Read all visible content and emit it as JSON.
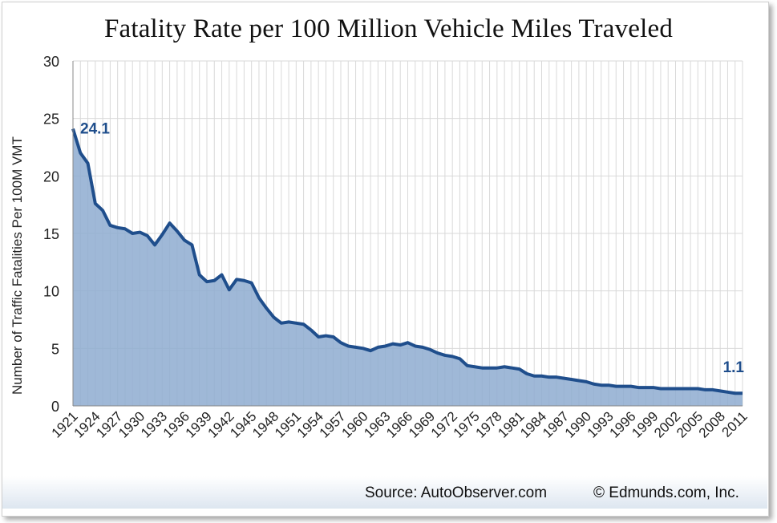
{
  "chart_data": {
    "type": "area",
    "title": "Fatality Rate per 100 Million Vehicle Miles Traveled",
    "ylabel": "Number of Traffic Fatalities Per 100M VMT",
    "xlabel": "",
    "ylim": [
      0,
      30
    ],
    "yticks": [
      "0",
      "5",
      "10",
      "15",
      "20",
      "25",
      "30"
    ],
    "xticks": [
      "1921",
      "1924",
      "1927",
      "1930",
      "1933",
      "1936",
      "1939",
      "1942",
      "1945",
      "1948",
      "1951",
      "1954",
      "1957",
      "1960",
      "1963",
      "1966",
      "1969",
      "1972",
      "1975",
      "1978",
      "1981",
      "1984",
      "1987",
      "1990",
      "1993",
      "1996",
      "1999",
      "2002",
      "2005",
      "2008",
      "2011"
    ],
    "grid": true,
    "x": [
      1921,
      1922,
      1923,
      1924,
      1925,
      1926,
      1927,
      1928,
      1929,
      1930,
      1931,
      1932,
      1933,
      1934,
      1935,
      1936,
      1937,
      1938,
      1939,
      1940,
      1941,
      1942,
      1943,
      1944,
      1945,
      1946,
      1947,
      1948,
      1949,
      1950,
      1951,
      1952,
      1953,
      1954,
      1955,
      1956,
      1957,
      1958,
      1959,
      1960,
      1961,
      1962,
      1963,
      1964,
      1965,
      1966,
      1967,
      1968,
      1969,
      1970,
      1971,
      1972,
      1973,
      1974,
      1975,
      1976,
      1977,
      1978,
      1979,
      1980,
      1981,
      1982,
      1983,
      1984,
      1985,
      1986,
      1987,
      1988,
      1989,
      1990,
      1991,
      1992,
      1993,
      1994,
      1995,
      1996,
      1997,
      1998,
      1999,
      2000,
      2001,
      2002,
      2003,
      2004,
      2005,
      2006,
      2007,
      2008,
      2009,
      2010,
      2011
    ],
    "values": [
      24.1,
      22.0,
      21.1,
      17.6,
      17.0,
      15.7,
      15.5,
      15.4,
      15.0,
      15.1,
      14.8,
      14.0,
      14.9,
      15.9,
      15.2,
      14.4,
      14.0,
      11.4,
      10.8,
      10.9,
      11.4,
      10.1,
      11.0,
      10.9,
      10.7,
      9.4,
      8.5,
      7.7,
      7.2,
      7.3,
      7.2,
      7.1,
      6.6,
      6.0,
      6.1,
      6.0,
      5.5,
      5.2,
      5.1,
      5.0,
      4.8,
      5.1,
      5.2,
      5.4,
      5.3,
      5.5,
      5.2,
      5.1,
      4.9,
      4.6,
      4.4,
      4.3,
      4.1,
      3.5,
      3.4,
      3.3,
      3.3,
      3.3,
      3.4,
      3.3,
      3.2,
      2.8,
      2.6,
      2.6,
      2.5,
      2.5,
      2.4,
      2.3,
      2.2,
      2.1,
      1.9,
      1.8,
      1.8,
      1.7,
      1.7,
      1.7,
      1.6,
      1.6,
      1.6,
      1.5,
      1.5,
      1.5,
      1.5,
      1.5,
      1.5,
      1.4,
      1.4,
      1.3,
      1.2,
      1.1,
      1.1
    ],
    "annotations": [
      {
        "label": "24.1",
        "x": 1921,
        "y": 24.1
      },
      {
        "label": "1.1",
        "x": 2011,
        "y": 1.1
      }
    ],
    "colors": {
      "line": "#1f4e8c",
      "fill": "#8eacd0",
      "grid": "#d9d9d9",
      "annotation": "#1f4e8c"
    }
  },
  "footer": {
    "source": "Source: AutoObserver.com",
    "copyright": "© Edmunds.com,  Inc."
  }
}
